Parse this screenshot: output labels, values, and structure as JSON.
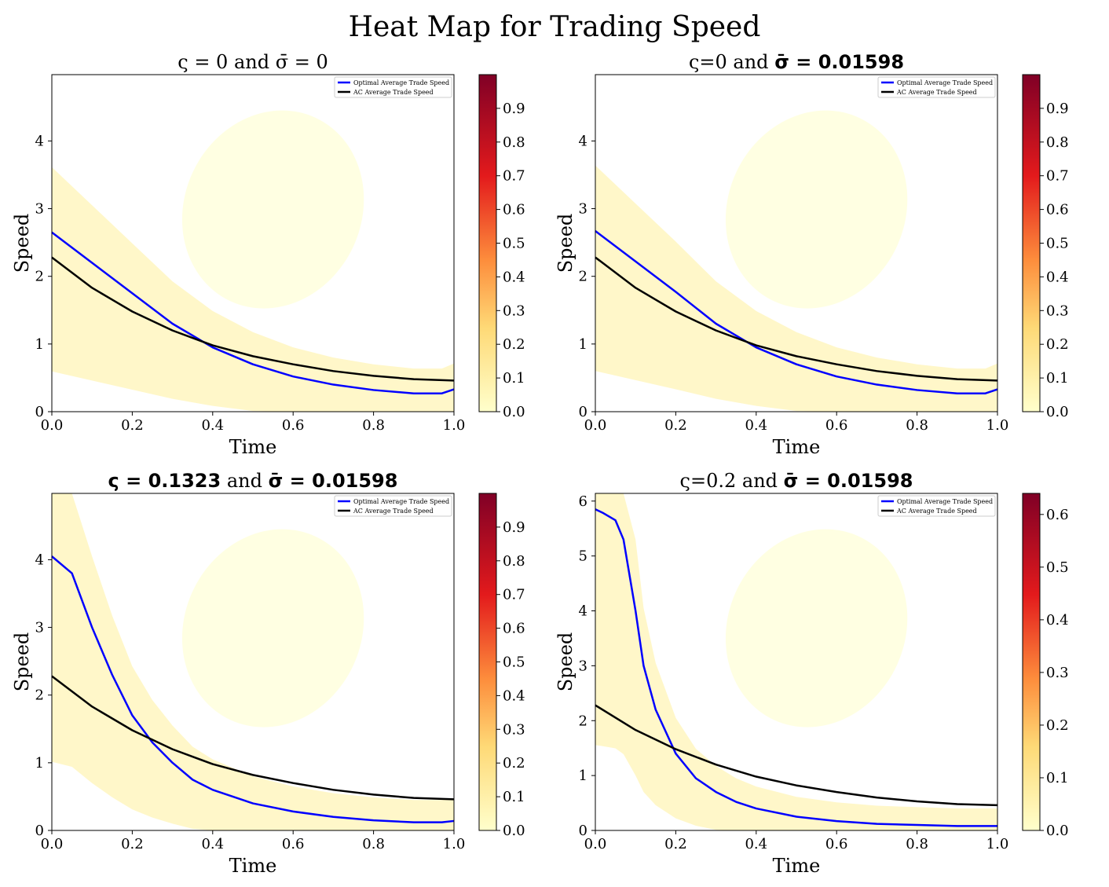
{
  "chart_data": {
    "title": "Heat Map for Trading Speed",
    "type": "heatmap",
    "panels": [
      {
        "title_parts": [
          {
            "text": "ς = 0 and σ̄ = 0",
            "bold": false
          }
        ],
        "xlabel": "Time",
        "ylabel": "Speed",
        "xlim": [
          0,
          1
        ],
        "ylim": [
          0,
          4.98
        ],
        "xticks": [
          0.0,
          0.2,
          0.4,
          0.6,
          0.8,
          1.0
        ],
        "yticks": [
          0,
          1,
          2,
          3,
          4
        ],
        "colorbar": {
          "range": [
            0,
            1.0
          ],
          "ticks": [
            0.0,
            0.1,
            0.2,
            0.3,
            0.4,
            0.5,
            0.6,
            0.7,
            0.8,
            0.9
          ]
        },
        "legend": [
          "Optimal Average Trade Speed",
          "AC Average Trade Speed"
        ],
        "legend_placement": "top-right",
        "series": [
          {
            "name": "Optimal Average Trade Speed",
            "color": "#0000ff",
            "x": [
              0,
              0.1,
              0.2,
              0.3,
              0.4,
              0.5,
              0.6,
              0.7,
              0.8,
              0.9,
              0.97,
              1.0
            ],
            "y": [
              2.65,
              2.2,
              1.75,
              1.3,
              0.95,
              0.7,
              0.52,
              0.4,
              0.32,
              0.27,
              0.27,
              0.33
            ]
          },
          {
            "name": "AC Average Trade Speed",
            "color": "#000000",
            "x": [
              0,
              0.1,
              0.2,
              0.3,
              0.4,
              0.5,
              0.6,
              0.7,
              0.8,
              0.9,
              1.0
            ],
            "y": [
              2.28,
              1.83,
              1.48,
              1.2,
              0.98,
              0.82,
              0.7,
              0.6,
              0.53,
              0.48,
              0.46
            ]
          }
        ]
      },
      {
        "title_parts": [
          {
            "text": "ς=0 and ",
            "bold": false
          },
          {
            "text": "σ̄ = 0.01598",
            "bold": true
          }
        ],
        "xlabel": "Time",
        "ylabel": "Speed",
        "xlim": [
          0,
          1
        ],
        "ylim": [
          0,
          4.98
        ],
        "xticks": [
          0.0,
          0.2,
          0.4,
          0.6,
          0.8,
          1.0
        ],
        "yticks": [
          0,
          1,
          2,
          3,
          4
        ],
        "colorbar": {
          "range": [
            0,
            1.0
          ],
          "ticks": [
            0.0,
            0.1,
            0.2,
            0.3,
            0.4,
            0.5,
            0.6,
            0.7,
            0.8,
            0.9
          ]
        },
        "legend": [
          "Optimal Average Trade Speed",
          "AC Average Trade Speed"
        ],
        "legend_placement": "top-right",
        "series": [
          {
            "name": "Optimal Average Trade Speed",
            "color": "#0000ff",
            "x": [
              0,
              0.1,
              0.2,
              0.3,
              0.4,
              0.5,
              0.6,
              0.7,
              0.8,
              0.9,
              0.97,
              1.0
            ],
            "y": [
              2.67,
              2.22,
              1.77,
              1.3,
              0.95,
              0.7,
              0.52,
              0.4,
              0.32,
              0.27,
              0.27,
              0.33
            ]
          },
          {
            "name": "AC Average Trade Speed",
            "color": "#000000",
            "x": [
              0,
              0.1,
              0.2,
              0.3,
              0.4,
              0.5,
              0.6,
              0.7,
              0.8,
              0.9,
              1.0
            ],
            "y": [
              2.28,
              1.83,
              1.48,
              1.2,
              0.98,
              0.82,
              0.7,
              0.6,
              0.53,
              0.48,
              0.46
            ]
          }
        ]
      },
      {
        "title_parts": [
          {
            "text": "ς = 0.1323",
            "bold": true
          },
          {
            "text": " and ",
            "bold": false
          },
          {
            "text": "σ̄ = 0.01598",
            "bold": true
          }
        ],
        "xlabel": "Time",
        "ylabel": "Speed",
        "xlim": [
          0,
          1
        ],
        "ylim": [
          0,
          4.98
        ],
        "xticks": [
          0.0,
          0.2,
          0.4,
          0.6,
          0.8,
          1.0
        ],
        "yticks": [
          0,
          1,
          2,
          3,
          4
        ],
        "colorbar": {
          "range": [
            0,
            1.0
          ],
          "ticks": [
            0.0,
            0.1,
            0.2,
            0.3,
            0.4,
            0.5,
            0.6,
            0.7,
            0.8,
            0.9
          ]
        },
        "legend": [
          "Optimal Average Trade Speed",
          "AC Average Trade Speed"
        ],
        "legend_placement": "top-right",
        "series": [
          {
            "name": "Optimal Average Trade Speed",
            "color": "#0000ff",
            "x": [
              0,
              0.05,
              0.1,
              0.15,
              0.2,
              0.25,
              0.3,
              0.35,
              0.4,
              0.5,
              0.6,
              0.7,
              0.8,
              0.9,
              0.97,
              1.0
            ],
            "y": [
              4.05,
              3.8,
              3.0,
              2.3,
              1.7,
              1.3,
              1.0,
              0.75,
              0.6,
              0.4,
              0.28,
              0.2,
              0.15,
              0.12,
              0.12,
              0.14
            ]
          },
          {
            "name": "AC Average Trade Speed",
            "color": "#000000",
            "x": [
              0,
              0.1,
              0.2,
              0.3,
              0.4,
              0.5,
              0.6,
              0.7,
              0.8,
              0.9,
              1.0
            ],
            "y": [
              2.28,
              1.83,
              1.48,
              1.2,
              0.98,
              0.82,
              0.7,
              0.6,
              0.53,
              0.48,
              0.46
            ]
          }
        ]
      },
      {
        "title_parts": [
          {
            "text": "ς=0.2 and ",
            "bold": false
          },
          {
            "text": "σ̄ = 0.01598",
            "bold": true
          }
        ],
        "xlabel": "Time",
        "ylabel": "Speed",
        "xlim": [
          0,
          1
        ],
        "ylim": [
          0,
          6.14
        ],
        "xticks": [
          0.0,
          0.2,
          0.4,
          0.6,
          0.8,
          1.0
        ],
        "yticks": [
          0,
          1,
          2,
          3,
          4,
          5,
          6
        ],
        "colorbar": {
          "range": [
            0,
            0.64
          ],
          "ticks": [
            0.0,
            0.1,
            0.2,
            0.3,
            0.4,
            0.5,
            0.6
          ]
        },
        "legend": [
          "Optimal Average Trade Speed",
          "AC Average Trade Speed"
        ],
        "legend_placement": "top-right",
        "series": [
          {
            "name": "Optimal Average Trade Speed",
            "color": "#0000ff",
            "x": [
              0,
              0.02,
              0.05,
              0.07,
              0.1,
              0.12,
              0.15,
              0.2,
              0.25,
              0.3,
              0.35,
              0.4,
              0.5,
              0.6,
              0.7,
              0.8,
              0.9,
              1.0
            ],
            "y": [
              5.85,
              5.78,
              5.65,
              5.3,
              4.0,
              3.0,
              2.2,
              1.4,
              0.95,
              0.7,
              0.52,
              0.4,
              0.25,
              0.17,
              0.12,
              0.1,
              0.08,
              0.08
            ]
          },
          {
            "name": "AC Average Trade Speed",
            "color": "#000000",
            "x": [
              0,
              0.1,
              0.2,
              0.3,
              0.4,
              0.5,
              0.6,
              0.7,
              0.8,
              0.9,
              1.0
            ],
            "y": [
              2.28,
              1.83,
              1.48,
              1.2,
              0.98,
              0.82,
              0.7,
              0.6,
              0.53,
              0.48,
              0.46
            ]
          }
        ]
      }
    ]
  }
}
